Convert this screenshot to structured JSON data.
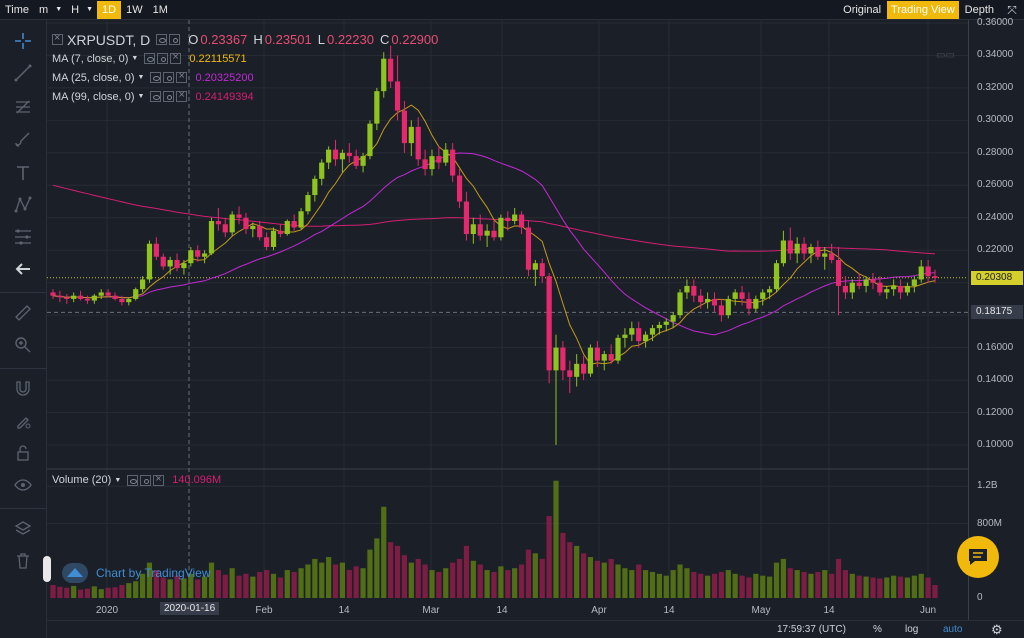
{
  "topbar": {
    "time_label": "Time",
    "intervals": [
      {
        "label": "m",
        "active": false,
        "dropdown": true
      },
      {
        "label": "H",
        "active": false,
        "dropdown": true
      },
      {
        "label": "1D",
        "active": true,
        "dropdown": false
      },
      {
        "label": "1W",
        "active": false,
        "dropdown": false
      },
      {
        "label": "1M",
        "active": false,
        "dropdown": false
      }
    ],
    "views": [
      {
        "label": "Original",
        "active": false
      },
      {
        "label": "Trading View",
        "active": true
      },
      {
        "label": "Depth",
        "active": false
      }
    ],
    "fullscreen_icon": "expand-icon"
  },
  "legend": {
    "symbol": "XRPUSDT, D",
    "ohlc": [
      {
        "k": "O",
        "v": "0.23367"
      },
      {
        "k": "H",
        "v": "0.23501"
      },
      {
        "k": "L",
        "v": "0.22230"
      },
      {
        "k": "C",
        "v": "0.22900"
      }
    ],
    "ma": [
      {
        "name": "MA (7, close, 0)",
        "value": "0.22115571",
        "color": "#f0b90b"
      },
      {
        "name": "MA (25, close, 0)",
        "value": "0.20325200",
        "color": "#c22ad6"
      },
      {
        "name": "MA (99, close, 0)",
        "value": "0.24149394",
        "color": "#d41f73"
      }
    ]
  },
  "volume_legend": {
    "name": "Volume (20)",
    "value": "140.096M"
  },
  "watermark": "Chart by TradingView",
  "price_axis": {
    "labels": [
      "0.36000",
      "0.34000",
      "0.32000",
      "0.30000",
      "0.28000",
      "0.26000",
      "0.24000",
      "0.22000",
      "0.20000",
      "0.18000",
      "0.16000",
      "0.14000",
      "0.12000",
      "0.10000"
    ],
    "last_price": "0.20308",
    "crosshair_price": "0.18175"
  },
  "volume_axis": {
    "labels": [
      "1.2B",
      "800M",
      "0"
    ]
  },
  "time_axis": {
    "labels": [
      "2020",
      "Feb",
      "14",
      "Mar",
      "14",
      "Apr",
      "14",
      "May",
      "14",
      "Jun"
    ],
    "crosshair_date": "2020-01-16"
  },
  "statusbar": {
    "clock": "17:59:37 (UTC)",
    "percent": "%",
    "log": "log",
    "auto": "auto"
  },
  "colors": {
    "up": "#8fc31f",
    "down": "#e6296f",
    "accent": "#f0b90b"
  },
  "chart_data": {
    "type": "candlestick",
    "symbol": "XRPUSDT",
    "interval": "D",
    "ylim": [
      0.09,
      0.36
    ],
    "ohlc_series": [
      [
        0.194,
        0.196,
        0.19,
        0.192
      ],
      [
        0.192,
        0.195,
        0.188,
        0.191
      ],
      [
        0.191,
        0.193,
        0.187,
        0.19
      ],
      [
        0.19,
        0.194,
        0.188,
        0.192
      ],
      [
        0.192,
        0.195,
        0.189,
        0.19
      ],
      [
        0.19,
        0.192,
        0.187,
        0.189
      ],
      [
        0.189,
        0.193,
        0.187,
        0.192
      ],
      [
        0.192,
        0.196,
        0.19,
        0.194
      ],
      [
        0.194,
        0.196,
        0.191,
        0.192
      ],
      [
        0.192,
        0.194,
        0.189,
        0.19
      ],
      [
        0.19,
        0.192,
        0.186,
        0.188
      ],
      [
        0.188,
        0.191,
        0.186,
        0.19
      ],
      [
        0.19,
        0.197,
        0.189,
        0.196
      ],
      [
        0.196,
        0.204,
        0.194,
        0.202
      ],
      [
        0.202,
        0.226,
        0.2,
        0.224
      ],
      [
        0.224,
        0.228,
        0.214,
        0.216
      ],
      [
        0.216,
        0.218,
        0.208,
        0.21
      ],
      [
        0.21,
        0.216,
        0.205,
        0.214
      ],
      [
        0.214,
        0.218,
        0.207,
        0.209
      ],
      [
        0.209,
        0.214,
        0.205,
        0.212
      ],
      [
        0.212,
        0.222,
        0.21,
        0.22
      ],
      [
        0.22,
        0.223,
        0.213,
        0.216
      ],
      [
        0.216,
        0.22,
        0.212,
        0.218
      ],
      [
        0.218,
        0.24,
        0.217,
        0.238
      ],
      [
        0.238,
        0.246,
        0.232,
        0.236
      ],
      [
        0.236,
        0.24,
        0.228,
        0.231
      ],
      [
        0.231,
        0.244,
        0.229,
        0.242
      ],
      [
        0.242,
        0.247,
        0.236,
        0.24
      ],
      [
        0.24,
        0.243,
        0.23,
        0.233
      ],
      [
        0.233,
        0.237,
        0.228,
        0.235
      ],
      [
        0.235,
        0.238,
        0.226,
        0.228
      ],
      [
        0.228,
        0.231,
        0.22,
        0.222
      ],
      [
        0.222,
        0.234,
        0.22,
        0.232
      ],
      [
        0.232,
        0.236,
        0.228,
        0.23
      ],
      [
        0.23,
        0.239,
        0.229,
        0.238
      ],
      [
        0.238,
        0.242,
        0.232,
        0.234
      ],
      [
        0.234,
        0.246,
        0.233,
        0.244
      ],
      [
        0.244,
        0.256,
        0.242,
        0.254
      ],
      [
        0.254,
        0.266,
        0.25,
        0.264
      ],
      [
        0.264,
        0.276,
        0.26,
        0.274
      ],
      [
        0.274,
        0.284,
        0.27,
        0.282
      ],
      [
        0.282,
        0.288,
        0.272,
        0.276
      ],
      [
        0.276,
        0.282,
        0.268,
        0.28
      ],
      [
        0.28,
        0.286,
        0.274,
        0.278
      ],
      [
        0.278,
        0.282,
        0.27,
        0.272
      ],
      [
        0.272,
        0.28,
        0.268,
        0.278
      ],
      [
        0.278,
        0.3,
        0.276,
        0.298
      ],
      [
        0.298,
        0.32,
        0.294,
        0.318
      ],
      [
        0.318,
        0.342,
        0.314,
        0.338
      ],
      [
        0.338,
        0.346,
        0.32,
        0.324
      ],
      [
        0.324,
        0.34,
        0.3,
        0.306
      ],
      [
        0.306,
        0.312,
        0.28,
        0.286
      ],
      [
        0.286,
        0.3,
        0.278,
        0.296
      ],
      [
        0.296,
        0.302,
        0.272,
        0.276
      ],
      [
        0.276,
        0.282,
        0.266,
        0.27
      ],
      [
        0.27,
        0.282,
        0.266,
        0.278
      ],
      [
        0.278,
        0.284,
        0.27,
        0.274
      ],
      [
        0.274,
        0.286,
        0.272,
        0.282
      ],
      [
        0.282,
        0.286,
        0.262,
        0.266
      ],
      [
        0.266,
        0.27,
        0.246,
        0.25
      ],
      [
        0.25,
        0.256,
        0.226,
        0.23
      ],
      [
        0.23,
        0.24,
        0.224,
        0.236
      ],
      [
        0.236,
        0.242,
        0.226,
        0.229
      ],
      [
        0.229,
        0.236,
        0.222,
        0.232
      ],
      [
        0.232,
        0.238,
        0.226,
        0.228
      ],
      [
        0.228,
        0.242,
        0.226,
        0.24
      ],
      [
        0.24,
        0.244,
        0.232,
        0.238
      ],
      [
        0.238,
        0.246,
        0.236,
        0.242
      ],
      [
        0.242,
        0.244,
        0.23,
        0.234
      ],
      [
        0.234,
        0.238,
        0.204,
        0.208
      ],
      [
        0.208,
        0.214,
        0.198,
        0.212
      ],
      [
        0.212,
        0.215,
        0.2,
        0.204
      ],
      [
        0.204,
        0.206,
        0.138,
        0.146
      ],
      [
        0.146,
        0.168,
        0.1,
        0.16
      ],
      [
        0.16,
        0.164,
        0.14,
        0.146
      ],
      [
        0.146,
        0.152,
        0.132,
        0.142
      ],
      [
        0.142,
        0.156,
        0.136,
        0.15
      ],
      [
        0.15,
        0.155,
        0.14,
        0.144
      ],
      [
        0.144,
        0.162,
        0.142,
        0.16
      ],
      [
        0.16,
        0.164,
        0.148,
        0.152
      ],
      [
        0.152,
        0.158,
        0.146,
        0.156
      ],
      [
        0.156,
        0.162,
        0.15,
        0.152
      ],
      [
        0.152,
        0.168,
        0.15,
        0.166
      ],
      [
        0.166,
        0.172,
        0.16,
        0.168
      ],
      [
        0.168,
        0.176,
        0.164,
        0.172
      ],
      [
        0.172,
        0.176,
        0.16,
        0.164
      ],
      [
        0.164,
        0.17,
        0.16,
        0.168
      ],
      [
        0.168,
        0.174,
        0.164,
        0.172
      ],
      [
        0.172,
        0.176,
        0.168,
        0.174
      ],
      [
        0.174,
        0.178,
        0.17,
        0.176
      ],
      [
        0.176,
        0.182,
        0.172,
        0.18
      ],
      [
        0.18,
        0.196,
        0.178,
        0.194
      ],
      [
        0.194,
        0.202,
        0.19,
        0.198
      ],
      [
        0.198,
        0.202,
        0.188,
        0.192
      ],
      [
        0.192,
        0.196,
        0.184,
        0.188
      ],
      [
        0.188,
        0.194,
        0.184,
        0.19
      ],
      [
        0.19,
        0.194,
        0.182,
        0.186
      ],
      [
        0.186,
        0.19,
        0.176,
        0.18
      ],
      [
        0.18,
        0.192,
        0.178,
        0.19
      ],
      [
        0.19,
        0.196,
        0.186,
        0.194
      ],
      [
        0.194,
        0.198,
        0.186,
        0.19
      ],
      [
        0.19,
        0.194,
        0.18,
        0.184
      ],
      [
        0.184,
        0.192,
        0.182,
        0.19
      ],
      [
        0.19,
        0.196,
        0.186,
        0.194
      ],
      [
        0.194,
        0.198,
        0.19,
        0.196
      ],
      [
        0.196,
        0.214,
        0.194,
        0.212
      ],
      [
        0.212,
        0.232,
        0.21,
        0.226
      ],
      [
        0.226,
        0.234,
        0.214,
        0.218
      ],
      [
        0.218,
        0.228,
        0.212,
        0.224
      ],
      [
        0.224,
        0.228,
        0.214,
        0.218
      ],
      [
        0.218,
        0.224,
        0.212,
        0.222
      ],
      [
        0.222,
        0.226,
        0.214,
        0.216
      ],
      [
        0.216,
        0.222,
        0.208,
        0.218
      ],
      [
        0.218,
        0.224,
        0.212,
        0.214
      ],
      [
        0.214,
        0.222,
        0.18,
        0.198
      ],
      [
        0.198,
        0.204,
        0.19,
        0.194
      ],
      [
        0.194,
        0.202,
        0.19,
        0.2
      ],
      [
        0.2,
        0.206,
        0.196,
        0.198
      ],
      [
        0.198,
        0.204,
        0.194,
        0.202
      ],
      [
        0.202,
        0.206,
        0.196,
        0.2
      ],
      [
        0.2,
        0.204,
        0.192,
        0.194
      ],
      [
        0.194,
        0.198,
        0.19,
        0.196
      ],
      [
        0.196,
        0.202,
        0.192,
        0.198
      ],
      [
        0.198,
        0.202,
        0.19,
        0.194
      ],
      [
        0.194,
        0.2,
        0.192,
        0.198
      ],
      [
        0.198,
        0.204,
        0.194,
        0.202
      ],
      [
        0.202,
        0.214,
        0.2,
        0.21
      ],
      [
        0.21,
        0.214,
        0.2,
        0.204
      ],
      [
        0.204,
        0.208,
        0.2,
        0.203
      ]
    ],
    "volume_series": [
      140,
      120,
      110,
      130,
      90,
      100,
      125,
      95,
      110,
      115,
      140,
      160,
      180,
      260,
      380,
      300,
      220,
      200,
      240,
      210,
      260,
      200,
      230,
      380,
      300,
      250,
      320,
      240,
      260,
      230,
      280,
      300,
      260,
      220,
      300,
      280,
      320,
      360,
      420,
      380,
      440,
      360,
      380,
      300,
      340,
      320,
      520,
      640,
      980,
      600,
      560,
      460,
      380,
      420,
      360,
      300,
      280,
      320,
      380,
      420,
      560,
      400,
      360,
      300,
      280,
      340,
      300,
      320,
      360,
      520,
      480,
      420,
      880,
      1260,
      700,
      600,
      560,
      480,
      440,
      400,
      380,
      420,
      360,
      320,
      300,
      360,
      300,
      280,
      260,
      240,
      300,
      360,
      320,
      280,
      260,
      240,
      260,
      280,
      300,
      260,
      240,
      220,
      260,
      240,
      230,
      380,
      420,
      320,
      300,
      280,
      260,
      280,
      300,
      260,
      420,
      300,
      260,
      240,
      230,
      220,
      210,
      220,
      240,
      230,
      220,
      240,
      260,
      220,
      140
    ],
    "ma_lines": [
      "MA (7, close, 0)",
      "MA (25, close, 0)",
      "MA (99, close, 0)"
    ],
    "volume_ylim": [
      0,
      1300
    ],
    "price_labels": [
      "0.36000",
      "0.34000",
      "0.32000",
      "0.30000",
      "0.28000",
      "0.26000",
      "0.24000",
      "0.22000",
      "0.20000",
      "0.18000",
      "0.16000",
      "0.14000",
      "0.12000",
      "0.10000"
    ],
    "volume_labels": [
      "1.2B",
      "800M",
      "0"
    ],
    "x_labels": [
      "2020",
      "Feb",
      "14",
      "Mar",
      "14",
      "Apr",
      "14",
      "May",
      "14",
      "Jun"
    ]
  }
}
